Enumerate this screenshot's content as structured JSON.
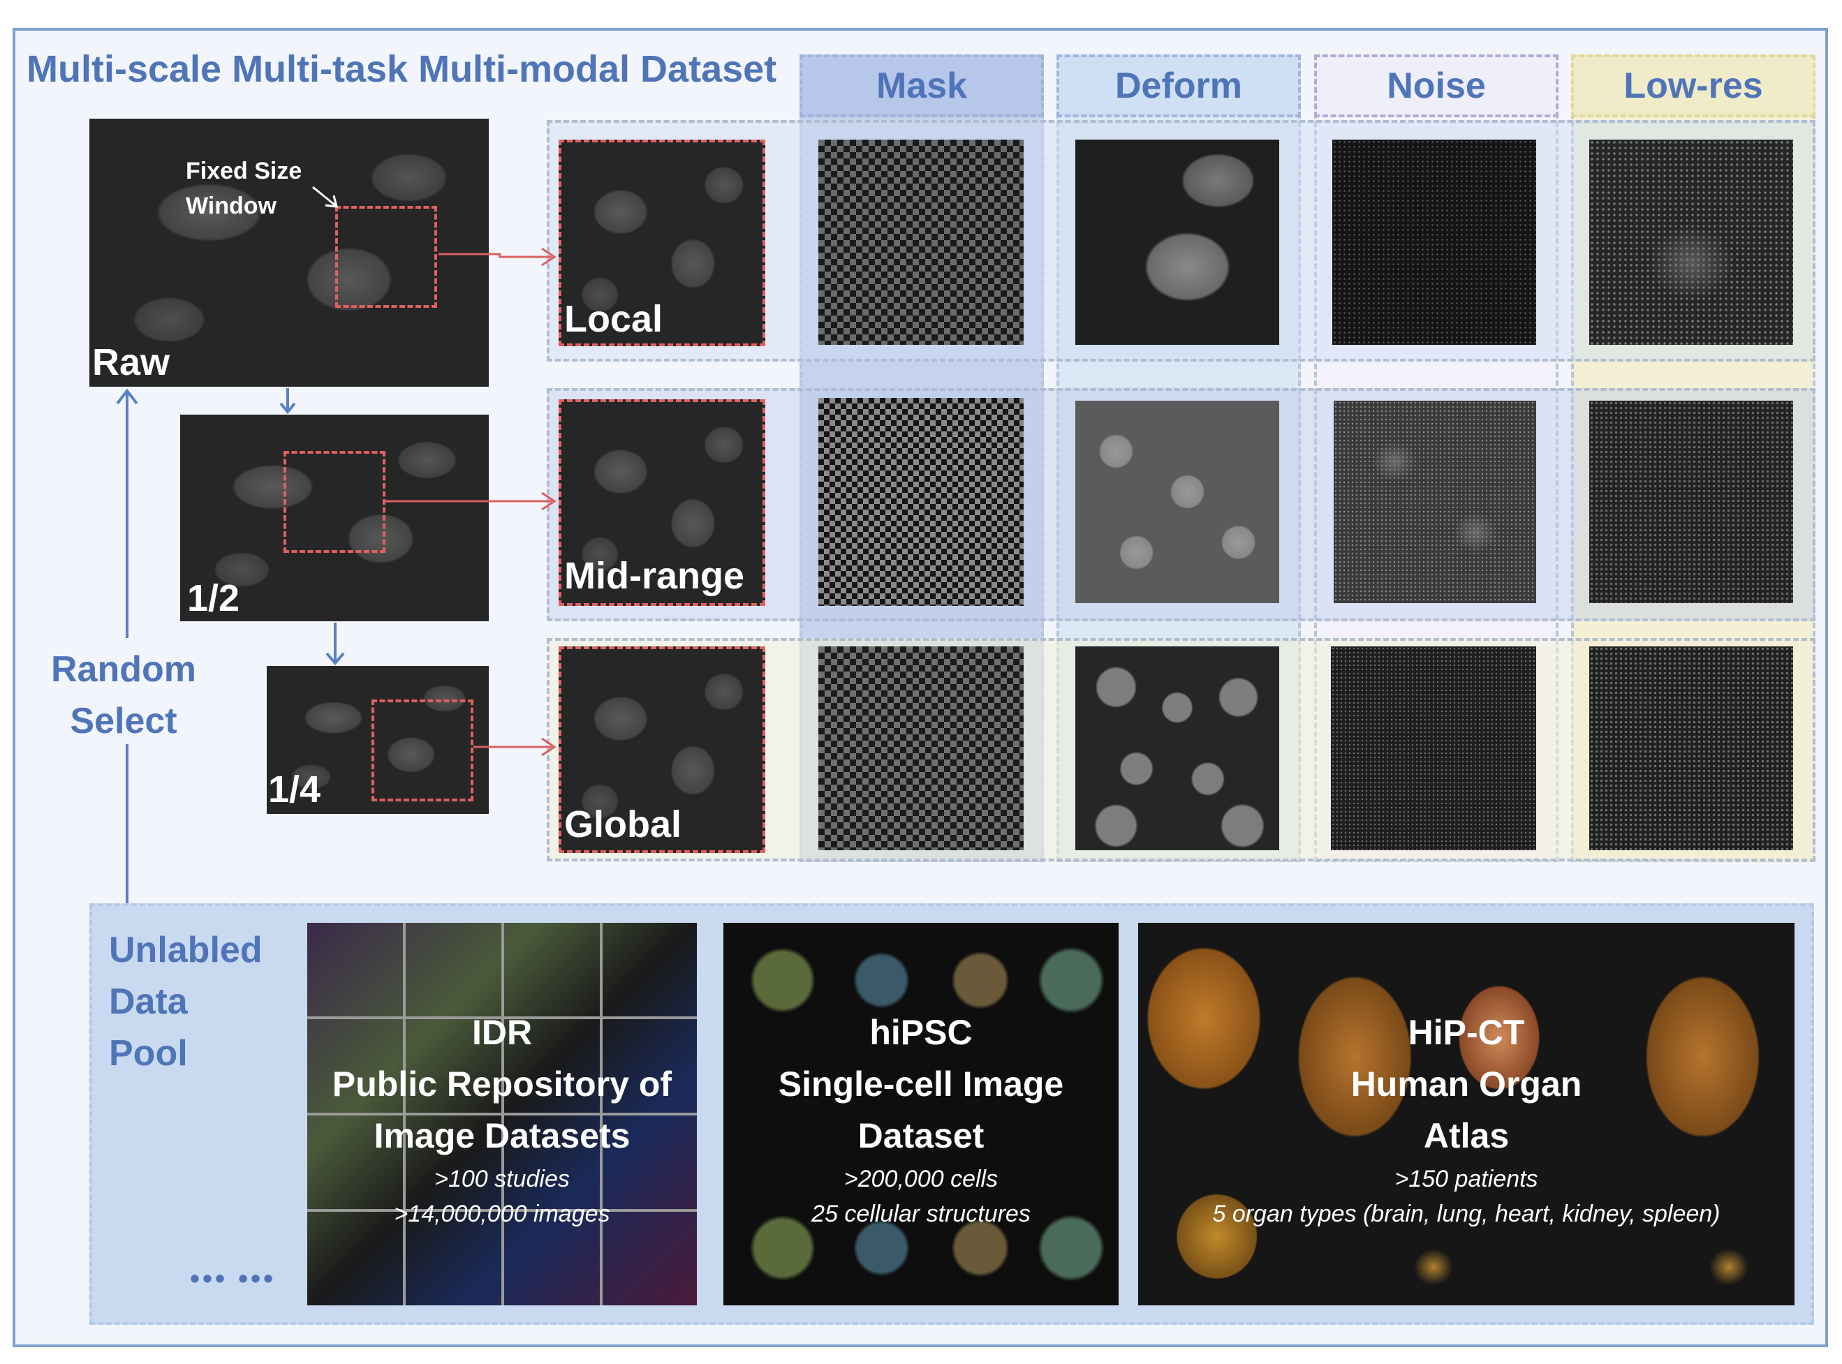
{
  "title": "Multi-scale Multi-task Multi-modal Dataset",
  "columns": {
    "mask": "Mask",
    "deform": "Deform",
    "noise": "Noise",
    "lowres": "Low-res"
  },
  "scales": {
    "raw": "Raw",
    "half": "1/2",
    "quarter": "1/4"
  },
  "window_label": [
    "Fixed Size",
    "Window"
  ],
  "rows": {
    "local": "Local",
    "mid": "Mid-range",
    "global": "Global"
  },
  "random_select": [
    "Random",
    "Select"
  ],
  "pool": {
    "label": [
      "Unlabled",
      "Data",
      "Pool"
    ],
    "ellipsis": "••• •••",
    "idr": {
      "lines": [
        "IDR",
        "Public Repository of",
        "Image Datasets"
      ],
      "stats": [
        ">100 studies",
        ">14,000,000 images"
      ]
    },
    "hipsc": {
      "lines": [
        "hiPSC",
        "Single-cell Image",
        "Dataset"
      ],
      "stats": [
        ">200,000 cells",
        "25 cellular structures"
      ]
    },
    "hipct": {
      "lines": [
        "HiP-CT",
        "Human Organ",
        "Atlas"
      ],
      "stats": [
        ">150 patients",
        "5 organ types (brain, lung, heart, kidney, spleen)"
      ]
    }
  },
  "colors": {
    "accent": "#4f74b8",
    "frame": "#7f9ed2",
    "window": "#e06060",
    "mask_col": "#b7c7ea",
    "deform_col": "#cfe0f4",
    "noise_col": "#efeefb",
    "lowres_col": "#f0ecca",
    "pool_bg": "#c9daf0"
  }
}
